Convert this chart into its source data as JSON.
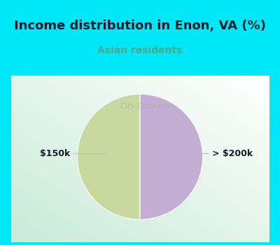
{
  "title": "Income distribution in Enon, VA (%)",
  "subtitle": "Asian residents",
  "slices": [
    50.0,
    50.0
  ],
  "labels": [
    "$150k",
    "> $200k"
  ],
  "colors": [
    "#c8d9a0",
    "#c4aed4"
  ],
  "bg_cyan": "#00e8f8",
  "chart_bg": "#e8f5ee",
  "title_fontsize": 13,
  "subtitle_fontsize": 10,
  "subtitle_color": "#4aaa88",
  "title_color": "#1a1a2e",
  "label_color": "#1a1a2e",
  "watermark": "City-Data.com",
  "startangle": 90,
  "label_fontsize": 9,
  "line_color": "#b0bec5"
}
